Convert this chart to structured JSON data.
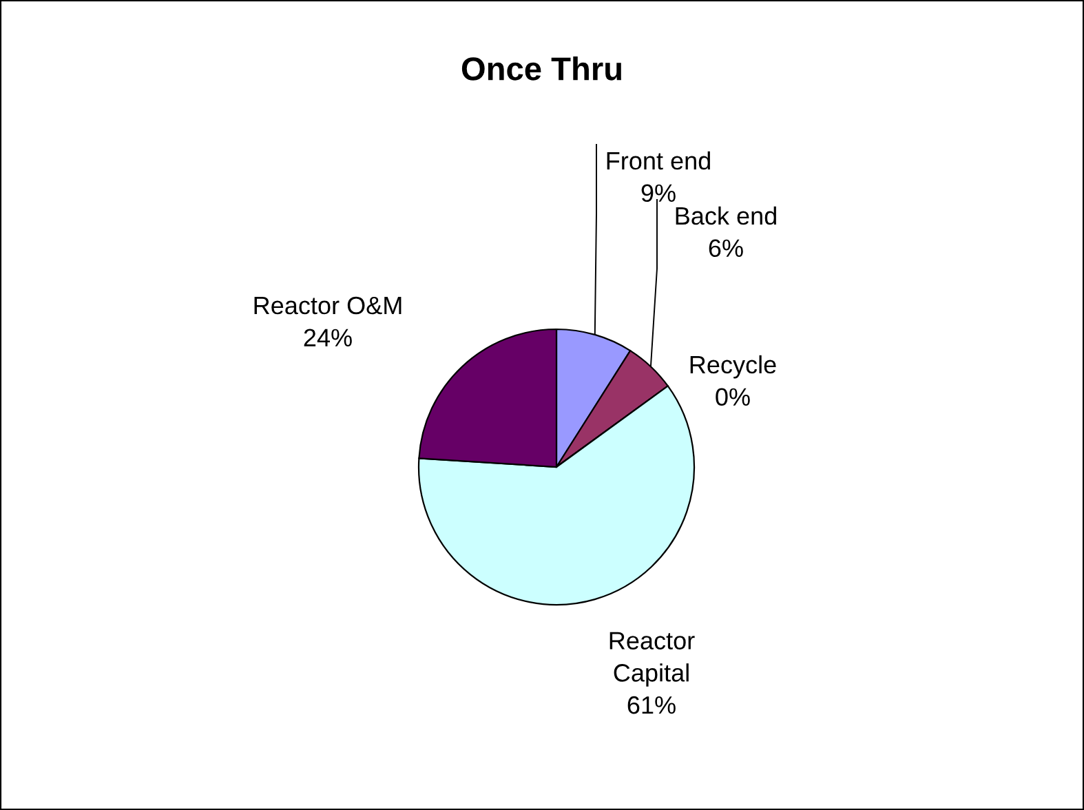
{
  "chart_data": {
    "type": "pie",
    "title": "Once Thru",
    "categories": [
      "Front end",
      "Back end",
      "Recycle",
      "Reactor Capital",
      "Reactor O&M"
    ],
    "values": [
      9,
      6,
      0,
      61,
      24
    ],
    "value_labels": [
      "9%",
      "6%",
      "0%",
      "61%",
      "24%"
    ],
    "colors": [
      "#9999ff",
      "#993366",
      "#ffffcc",
      "#ccffff",
      "#660066"
    ],
    "legend": false
  }
}
